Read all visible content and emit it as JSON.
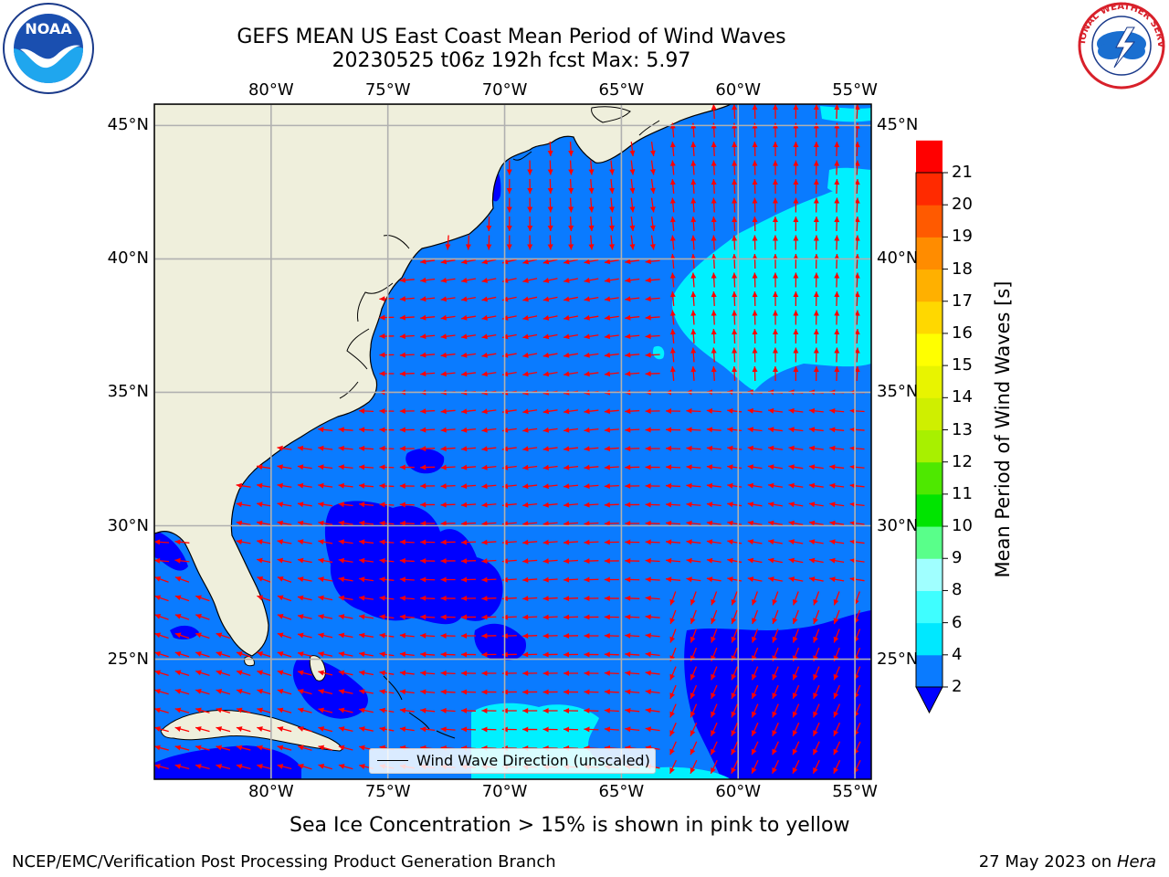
{
  "header": {
    "title_line1": "GEFS MEAN US East Coast Mean Period of Wind Waves",
    "title_line2": "20230525 t06z 192h fcst   Max: 5.97"
  },
  "logos": {
    "left": "noaa-logo",
    "right": "nws-logo"
  },
  "axes": {
    "lon_labels": [
      "80°W",
      "75°W",
      "70°W",
      "65°W",
      "60°W",
      "55°W"
    ],
    "lat_labels": [
      "45°N",
      "40°N",
      "35°N",
      "30°N",
      "25°N"
    ],
    "lon_values": [
      -80,
      -75,
      -70,
      -65,
      -60,
      -55
    ],
    "lat_values": [
      45,
      40,
      35,
      30,
      25
    ],
    "lon_range": [
      -85,
      -54.3
    ],
    "lat_range": [
      20.5,
      45.8
    ]
  },
  "colorbar": {
    "label": "Mean Period of Wind Waves [s]",
    "ticks": [
      "2",
      "4",
      "6",
      "8",
      "9",
      "10",
      "11",
      "12",
      "13",
      "14",
      "15",
      "16",
      "17",
      "18",
      "19",
      "20",
      "21"
    ],
    "colors": [
      "#0a7bff",
      "#00e8ff",
      "#3ffeff",
      "#a0ffff",
      "#59ff8a",
      "#00e400",
      "#4ee800",
      "#a8f000",
      "#cfef00",
      "#e8f400",
      "#ffff00",
      "#ffd800",
      "#ffb000",
      "#ff8c00",
      "#ff5a00",
      "#ff2a00",
      "#ff0000"
    ],
    "extend_color": "#0000ff"
  },
  "legend": {
    "label": "Wind Wave Direction (unscaled)"
  },
  "colors": {
    "land": "#efefdc",
    "ocean_main": "#0a7bff",
    "ocean_low": "#0000ff",
    "ocean_high": "#00f0ff",
    "arrow": "#ff0000",
    "grid": "#b0b0b0"
  },
  "footer": {
    "seaice_note": "Sea Ice Concentration > 15% is shown in pink to yellow",
    "left": "NCEP/EMC/Verification Post Processing Product Generation Branch",
    "right_date": "27 May 2023 on ",
    "right_host": "Hera"
  }
}
